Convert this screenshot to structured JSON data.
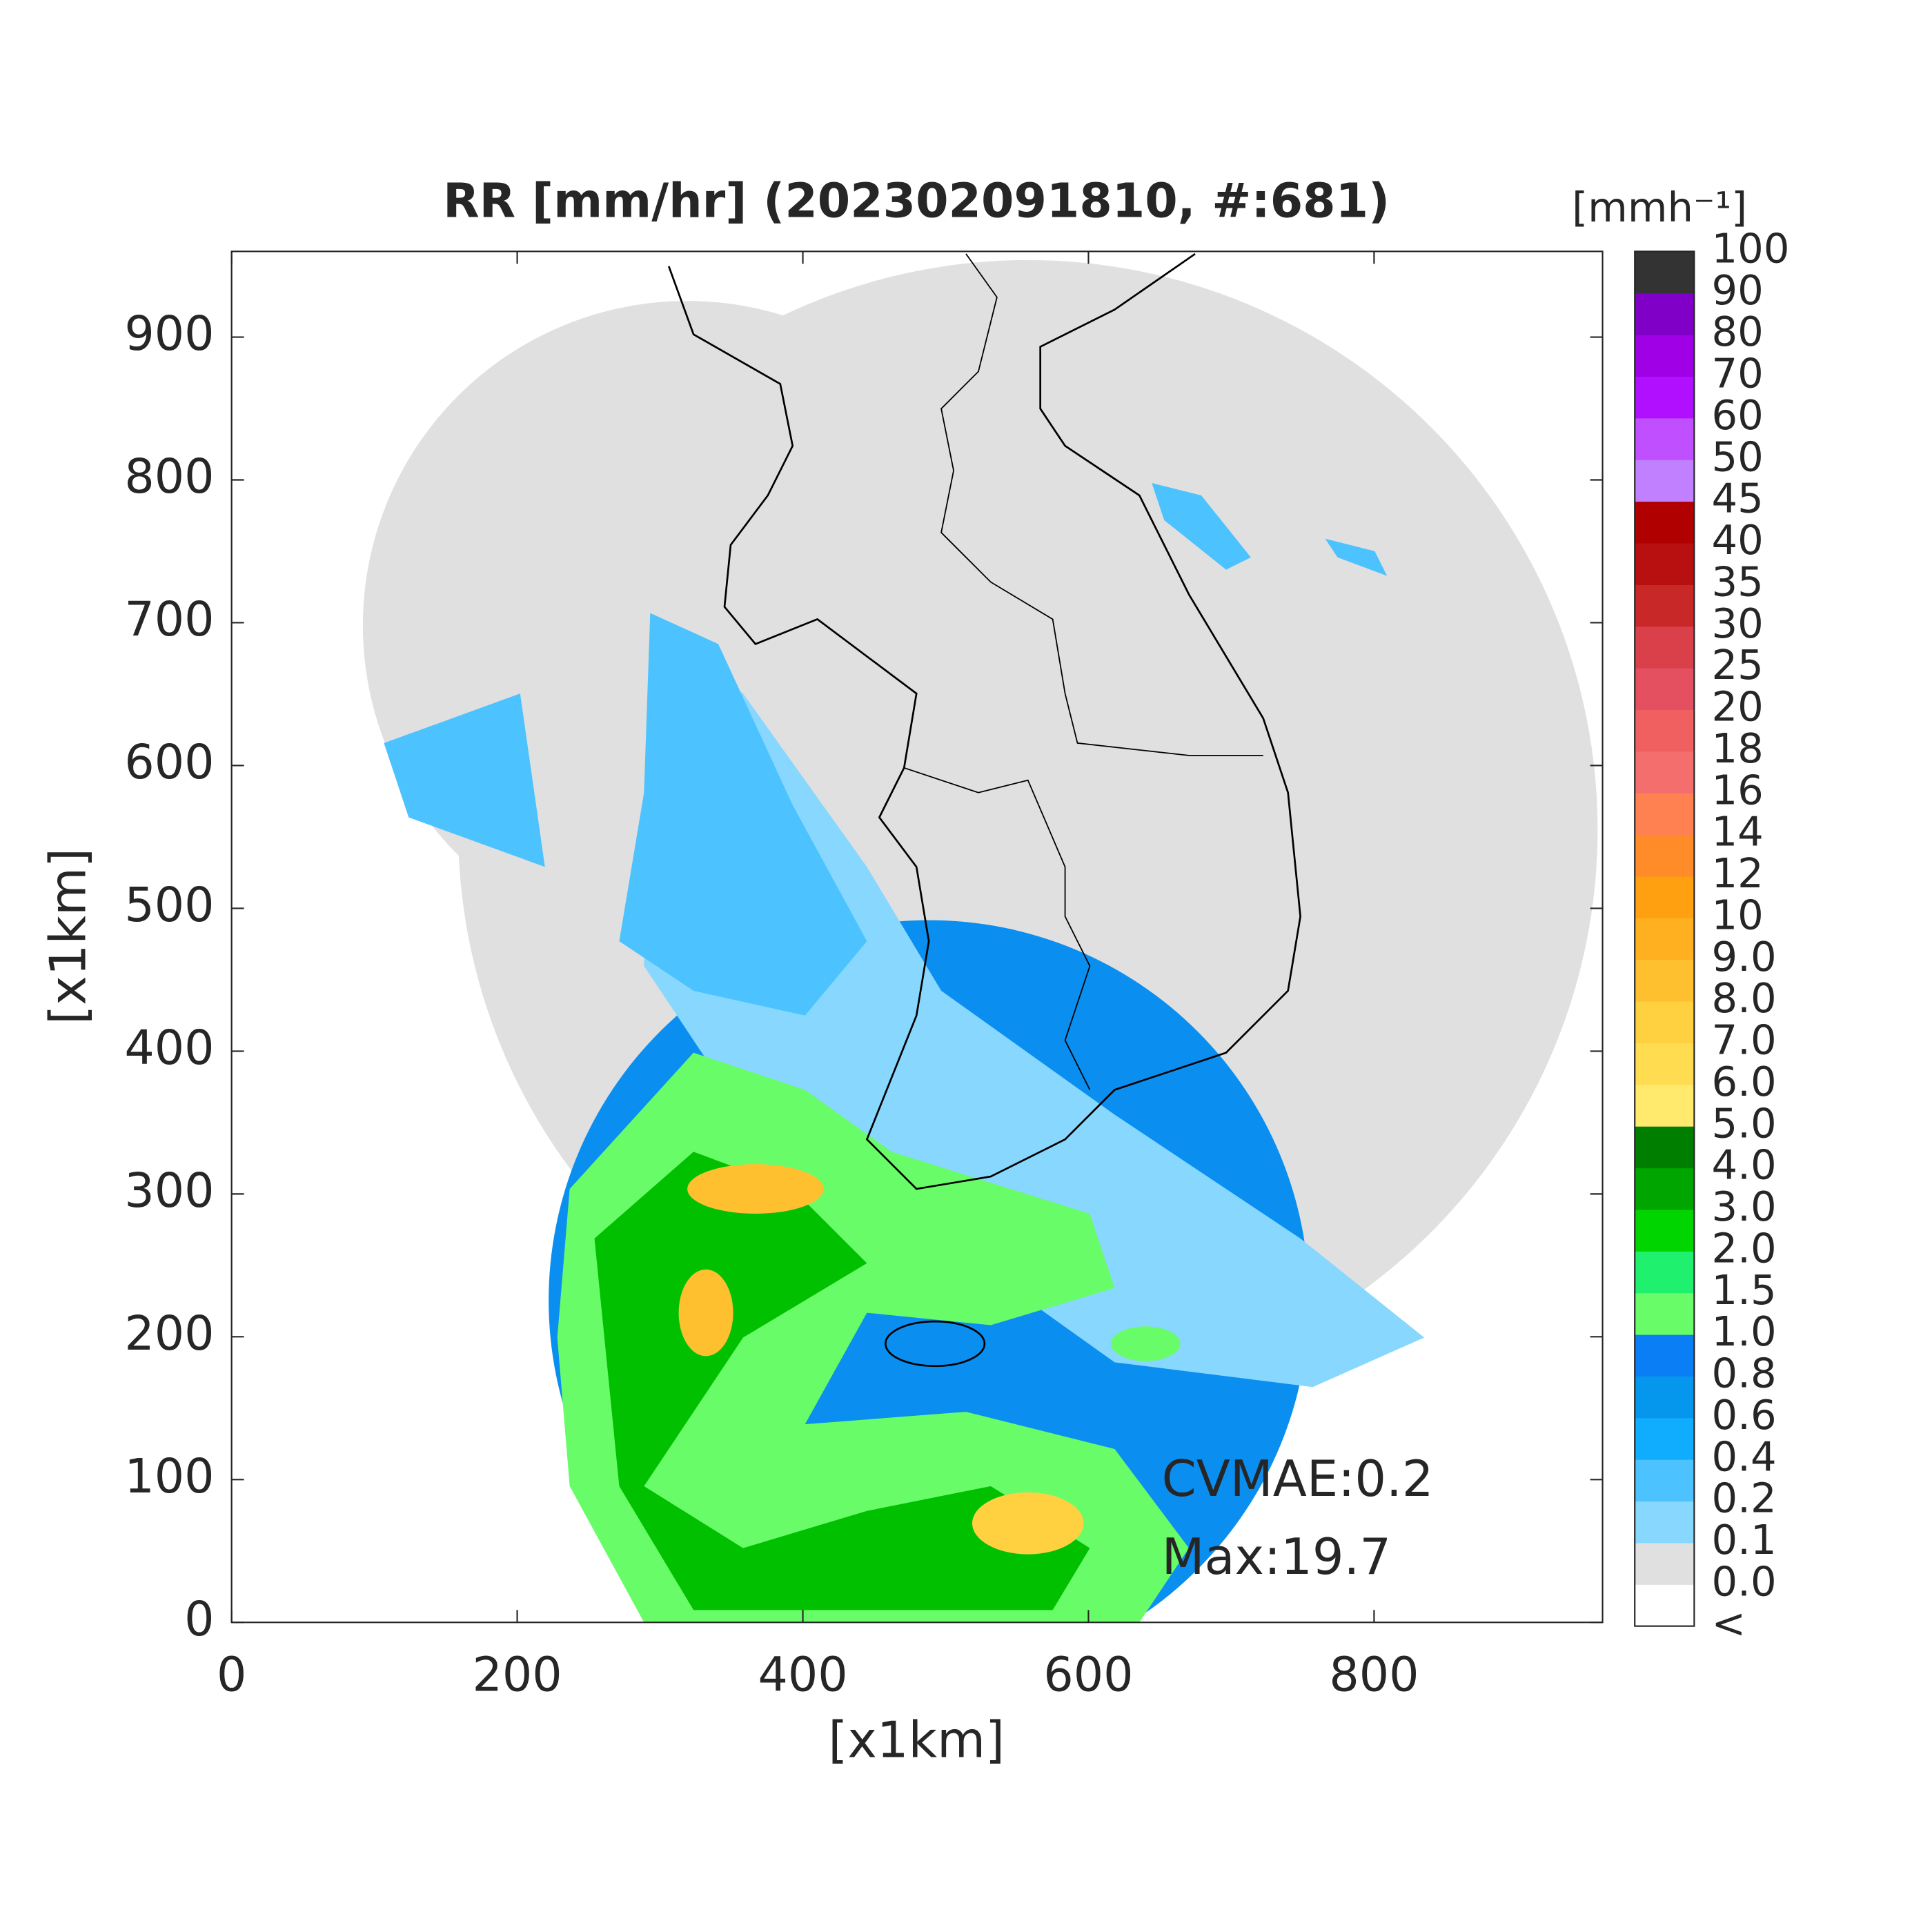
{
  "chart_data": {
    "type": "radar-map",
    "title": "RR [mm/hr] (202302091810, #:681)",
    "x_label": "[x1km]",
    "y_label": "[x1km]",
    "xlim": [
      0,
      960
    ],
    "ylim": [
      0,
      960
    ],
    "xticks": [
      0,
      200,
      400,
      600,
      800
    ],
    "yticks": [
      0,
      100,
      200,
      300,
      400,
      500,
      600,
      700,
      800,
      900
    ],
    "annotations": [
      "CVMAE:0.2",
      "Max:19.7"
    ],
    "colorbar": {
      "title": "[mmh⁻¹]",
      "labels": [
        "<",
        "0.0",
        "0.1",
        "0.2",
        "0.4",
        "0.6",
        "0.8",
        "1.0",
        "1.5",
        "2.0",
        "3.0",
        "4.0",
        "5.0",
        "6.0",
        "7.0",
        "8.0",
        "9.0",
        "10",
        "12",
        "14",
        "16",
        "18",
        "20",
        "25",
        "30",
        "35",
        "40",
        "45",
        "50",
        "60",
        "70",
        "80",
        "90",
        "100"
      ],
      "colors": [
        "#ffffff",
        "#e0e0e0",
        "#87d7ff",
        "#4cc3ff",
        "#10adff",
        "#0597ee",
        "#0a7ff5",
        "#69fc69",
        "#1ff06e",
        "#00d500",
        "#00a500",
        "#007e00",
        "#ffea6e",
        "#ffdc50",
        "#ffd040",
        "#ffc030",
        "#ffb020",
        "#ffa010",
        "#ff8c28",
        "#ff8050",
        "#f56e6e",
        "#f06060",
        "#e55060",
        "#d9404a",
        "#c82828",
        "#b81010",
        "#b00000",
        "#c080ff",
        "#c050ff",
        "#b010ff",
        "#a000e6",
        "#8000c8",
        "#333333"
      ]
    }
  }
}
